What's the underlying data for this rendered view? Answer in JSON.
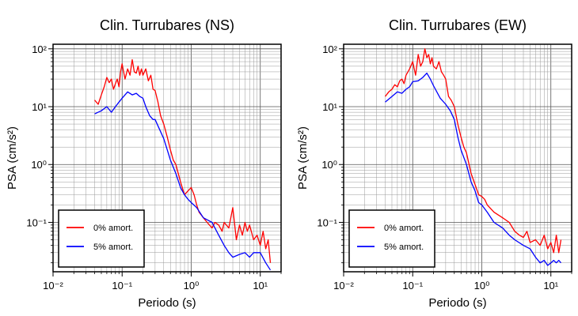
{
  "chart_data": [
    {
      "type": "line",
      "title": "Clin. Turrubares (NS)",
      "xlabel": "Periodo (s)",
      "ylabel": "PSA (cm/s²)",
      "xscale": "log",
      "yscale": "log",
      "xlim": [
        0.01,
        20
      ],
      "ylim": [
        0.014,
        120
      ],
      "grid": true,
      "legend_position": "bottom-left",
      "x_ticks": [
        "10⁻²",
        "10⁻¹",
        "10⁰",
        "10¹"
      ],
      "y_ticks": [
        "10⁻¹",
        "10⁰",
        "10¹",
        "10²"
      ],
      "series": [
        {
          "name": "0% amort.",
          "color": "#ff0000",
          "x": [
            0.04,
            0.045,
            0.05,
            0.055,
            0.06,
            0.065,
            0.07,
            0.075,
            0.08,
            0.085,
            0.09,
            0.095,
            0.1,
            0.11,
            0.12,
            0.13,
            0.14,
            0.15,
            0.16,
            0.17,
            0.18,
            0.19,
            0.2,
            0.22,
            0.24,
            0.26,
            0.28,
            0.3,
            0.33,
            0.36,
            0.4,
            0.45,
            0.5,
            0.55,
            0.6,
            0.7,
            0.8,
            0.9,
            1.0,
            1.1,
            1.2,
            1.3,
            1.5,
            1.7,
            2.0,
            2.2,
            2.5,
            2.8,
            3.0,
            3.5,
            4.0,
            4.5,
            5.0,
            5.5,
            6.0,
            6.5,
            7.0,
            8.0,
            9.0,
            10,
            11,
            12,
            13,
            14
          ],
          "y": [
            13,
            11,
            16,
            22,
            32,
            26,
            30,
            20,
            25,
            30,
            22,
            40,
            55,
            30,
            45,
            35,
            65,
            40,
            38,
            50,
            35,
            45,
            35,
            45,
            28,
            35,
            20,
            19,
            12,
            7,
            5,
            3,
            1.8,
            1.2,
            1.0,
            0.5,
            0.3,
            0.35,
            0.4,
            0.3,
            0.2,
            0.15,
            0.12,
            0.1,
            0.08,
            0.1,
            0.09,
            0.07,
            0.1,
            0.08,
            0.18,
            0.05,
            0.09,
            0.06,
            0.1,
            0.07,
            0.09,
            0.05,
            0.06,
            0.04,
            0.07,
            0.035,
            0.05,
            0.02
          ]
        },
        {
          "name": "5% amort.",
          "color": "#0000ff",
          "x": [
            0.04,
            0.05,
            0.06,
            0.07,
            0.08,
            0.09,
            0.1,
            0.12,
            0.14,
            0.16,
            0.18,
            0.2,
            0.22,
            0.25,
            0.28,
            0.3,
            0.35,
            0.4,
            0.45,
            0.5,
            0.6,
            0.7,
            0.8,
            0.9,
            1.0,
            1.2,
            1.5,
            2.0,
            2.5,
            3.0,
            3.5,
            4.0,
            5.0,
            6.0,
            7.0,
            8.0,
            10,
            12,
            14
          ],
          "y": [
            7.5,
            8.5,
            10,
            8,
            10,
            12,
            14,
            18,
            16,
            17,
            15,
            14,
            10,
            7,
            6,
            6,
            4,
            2.8,
            1.8,
            1.2,
            0.7,
            0.4,
            0.3,
            0.25,
            0.22,
            0.18,
            0.12,
            0.1,
            0.06,
            0.04,
            0.03,
            0.025,
            0.028,
            0.03,
            0.025,
            0.03,
            0.03,
            0.02,
            0.015
          ]
        }
      ]
    },
    {
      "type": "line",
      "title": "Clin. Turrubares (EW)",
      "xlabel": "Periodo (s)",
      "ylabel": "PSA (cm/s²)",
      "xscale": "log",
      "yscale": "log",
      "xlim": [
        0.01,
        20
      ],
      "ylim": [
        0.014,
        120
      ],
      "grid": true,
      "legend_position": "bottom-left",
      "x_ticks": [
        "10⁻²",
        "10⁻¹",
        "10⁰",
        "10¹"
      ],
      "y_ticks": [
        "10⁻¹",
        "10⁰",
        "10¹",
        "10²"
      ],
      "series": [
        {
          "name": "0% amort.",
          "color": "#ff0000",
          "x": [
            0.04,
            0.045,
            0.05,
            0.055,
            0.06,
            0.065,
            0.07,
            0.075,
            0.08,
            0.09,
            0.1,
            0.11,
            0.12,
            0.13,
            0.14,
            0.15,
            0.16,
            0.17,
            0.18,
            0.19,
            0.2,
            0.22,
            0.24,
            0.26,
            0.28,
            0.3,
            0.33,
            0.36,
            0.4,
            0.45,
            0.5,
            0.55,
            0.6,
            0.7,
            0.8,
            0.9,
            1.0,
            1.1,
            1.2,
            1.5,
            2.0,
            2.5,
            3.0,
            3.5,
            4.0,
            4.5,
            5.0,
            6.0,
            7.0,
            8.0,
            9.0,
            10,
            11,
            12,
            13,
            14
          ],
          "y": [
            15,
            18,
            20,
            24,
            22,
            28,
            30,
            25,
            35,
            45,
            60,
            35,
            80,
            50,
            60,
            100,
            70,
            80,
            55,
            70,
            50,
            45,
            60,
            40,
            35,
            30,
            15,
            13,
            10,
            5,
            3,
            2,
            1.6,
            0.7,
            0.45,
            0.3,
            0.28,
            0.25,
            0.2,
            0.15,
            0.12,
            0.1,
            0.07,
            0.06,
            0.055,
            0.07,
            0.045,
            0.05,
            0.04,
            0.06,
            0.035,
            0.045,
            0.03,
            0.06,
            0.03,
            0.05
          ]
        },
        {
          "name": "5% amort.",
          "color": "#0000ff",
          "x": [
            0.04,
            0.05,
            0.06,
            0.07,
            0.08,
            0.09,
            0.1,
            0.12,
            0.14,
            0.16,
            0.18,
            0.2,
            0.25,
            0.3,
            0.35,
            0.4,
            0.45,
            0.5,
            0.6,
            0.7,
            0.8,
            0.9,
            1.0,
            1.2,
            1.5,
            2.0,
            2.5,
            3.0,
            4.0,
            5.0,
            6.0,
            7.0,
            8.0,
            9.0,
            10,
            11,
            12,
            13,
            14
          ],
          "y": [
            12,
            15,
            18,
            17,
            20,
            22,
            27,
            28,
            32,
            38,
            30,
            23,
            14,
            11,
            8.5,
            6,
            3,
            1.8,
            1.0,
            0.5,
            0.35,
            0.22,
            0.2,
            0.15,
            0.1,
            0.08,
            0.06,
            0.05,
            0.04,
            0.035,
            0.025,
            0.02,
            0.022,
            0.018,
            0.02,
            0.022,
            0.02,
            0.022,
            0.02
          ]
        }
      ]
    }
  ]
}
